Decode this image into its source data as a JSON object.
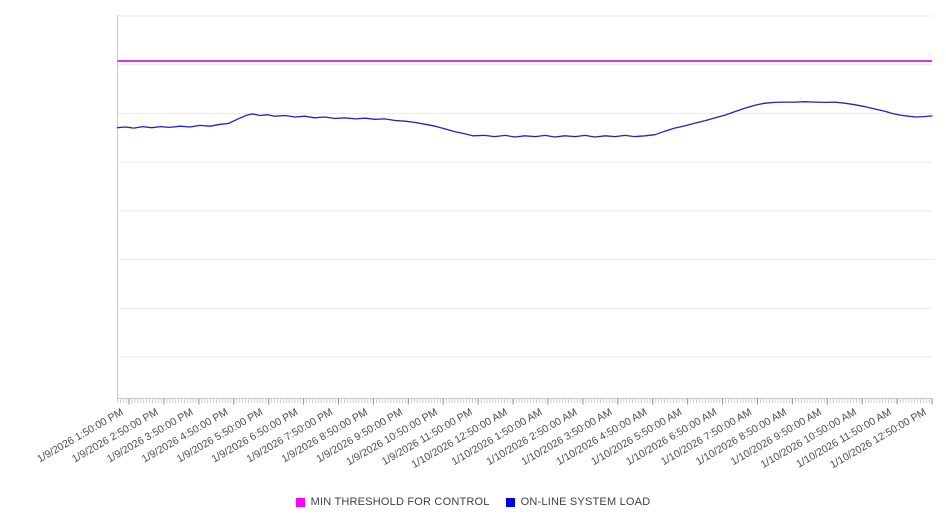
{
  "page": {
    "background": "#ffffff"
  },
  "legend": {
    "position": "bottom-center",
    "items": [
      {
        "label": "MIN THRESHOLD FOR CONTROL",
        "swatch_color": "#FF00FF"
      },
      {
        "label": "ON-LINE SYSTEM LOAD",
        "swatch_color": "#0000EE"
      }
    ]
  },
  "chart_data": {
    "type": "line",
    "title": "",
    "xlabel": "",
    "ylabel": "",
    "grid": true,
    "gridline_count": 8,
    "legend_position": "bottom",
    "x": {
      "tick_labels": [
        "1/9/2026 1:50:00 PM",
        "1/9/2026 2:50:00 PM",
        "1/9/2026 3:50:00 PM",
        "1/9/2026 4:50:00 PM",
        "1/9/2026 5:50:00 PM",
        "1/9/2026 6:50:00 PM",
        "1/9/2026 7:50:00 PM",
        "1/9/2026 8:50:00 PM",
        "1/9/2026 9:50:00 PM",
        "1/9/2026 10:50:00 PM",
        "1/9/2026 11:50:00 PM",
        "1/10/2026 12:50:00 AM",
        "1/10/2026 1:50:00 AM",
        "1/10/2026 2:50:00 AM",
        "1/10/2026 3:50:00 AM",
        "1/10/2026 4:50:00 AM",
        "1/10/2026 5:50:00 AM",
        "1/10/2026 6:50:00 AM",
        "1/10/2026 7:50:00 AM",
        "1/10/2026 8:50:00 AM",
        "1/10/2026 9:50:00 AM",
        "1/10/2026 10:50:00 AM",
        "1/10/2026 11:50:00 AM",
        "1/10/2026 12:50:00 PM"
      ],
      "label_rotation_deg": -30
    },
    "y": {
      "tick_labels_visible": false,
      "implied_range": [
        0,
        100
      ]
    },
    "series": [
      {
        "name": "MIN THRESHOLD FOR CONTROL",
        "kind": "threshold",
        "color": "#DD14DD",
        "value": 88.0
      },
      {
        "name": "ON-LINE SYSTEM LOAD",
        "kind": "line",
        "color": "#2121C8",
        "points": [
          [
            0.0,
            70.6
          ],
          [
            0.01,
            70.8
          ],
          [
            0.02,
            70.5
          ],
          [
            0.031,
            70.9
          ],
          [
            0.042,
            70.6
          ],
          [
            0.053,
            70.9
          ],
          [
            0.064,
            70.7
          ],
          [
            0.077,
            71.0
          ],
          [
            0.089,
            70.8
          ],
          [
            0.101,
            71.2
          ],
          [
            0.114,
            71.0
          ],
          [
            0.126,
            71.5
          ],
          [
            0.136,
            71.7
          ],
          [
            0.142,
            72.3
          ],
          [
            0.15,
            73.1
          ],
          [
            0.159,
            73.9
          ],
          [
            0.166,
            74.2
          ],
          [
            0.175,
            73.8
          ],
          [
            0.184,
            74.0
          ],
          [
            0.193,
            73.6
          ],
          [
            0.206,
            73.8
          ],
          [
            0.218,
            73.4
          ],
          [
            0.23,
            73.6
          ],
          [
            0.242,
            73.2
          ],
          [
            0.255,
            73.4
          ],
          [
            0.267,
            73.0
          ],
          [
            0.279,
            73.2
          ],
          [
            0.292,
            72.9
          ],
          [
            0.304,
            73.1
          ],
          [
            0.316,
            72.8
          ],
          [
            0.328,
            72.9
          ],
          [
            0.341,
            72.5
          ],
          [
            0.353,
            72.3
          ],
          [
            0.365,
            72.0
          ],
          [
            0.378,
            71.5
          ],
          [
            0.39,
            71.0
          ],
          [
            0.402,
            70.3
          ],
          [
            0.414,
            69.6
          ],
          [
            0.427,
            69.0
          ],
          [
            0.436,
            68.5
          ],
          [
            0.451,
            68.6
          ],
          [
            0.463,
            68.3
          ],
          [
            0.476,
            68.6
          ],
          [
            0.488,
            68.2
          ],
          [
            0.5,
            68.5
          ],
          [
            0.513,
            68.3
          ],
          [
            0.525,
            68.6
          ],
          [
            0.537,
            68.2
          ],
          [
            0.549,
            68.5
          ],
          [
            0.562,
            68.3
          ],
          [
            0.574,
            68.6
          ],
          [
            0.586,
            68.2
          ],
          [
            0.599,
            68.5
          ],
          [
            0.611,
            68.3
          ],
          [
            0.623,
            68.6
          ],
          [
            0.635,
            68.3
          ],
          [
            0.648,
            68.5
          ],
          [
            0.66,
            68.8
          ],
          [
            0.672,
            69.7
          ],
          [
            0.684,
            70.5
          ],
          [
            0.697,
            71.1
          ],
          [
            0.709,
            71.8
          ],
          [
            0.721,
            72.4
          ],
          [
            0.734,
            73.2
          ],
          [
            0.746,
            73.9
          ],
          [
            0.758,
            74.8
          ],
          [
            0.77,
            75.7
          ],
          [
            0.783,
            76.5
          ],
          [
            0.795,
            77.0
          ],
          [
            0.807,
            77.2
          ],
          [
            0.82,
            77.3
          ],
          [
            0.832,
            77.3
          ],
          [
            0.844,
            77.4
          ],
          [
            0.856,
            77.3
          ],
          [
            0.869,
            77.2
          ],
          [
            0.881,
            77.3
          ],
          [
            0.893,
            77.0
          ],
          [
            0.905,
            76.6
          ],
          [
            0.918,
            76.1
          ],
          [
            0.93,
            75.5
          ],
          [
            0.942,
            74.9
          ],
          [
            0.952,
            74.3
          ],
          [
            0.961,
            73.9
          ],
          [
            0.971,
            73.6
          ],
          [
            0.98,
            73.4
          ],
          [
            0.99,
            73.5
          ],
          [
            1.0,
            73.7
          ]
        ]
      }
    ]
  }
}
